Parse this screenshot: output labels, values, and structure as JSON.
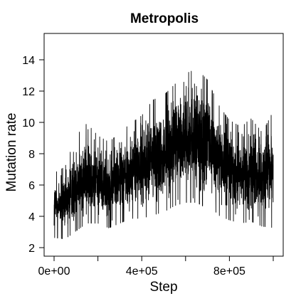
{
  "chart_data": {
    "type": "line",
    "title": "Metropolis",
    "xlabel": "Step",
    "ylabel": "Mutation rate",
    "xlim": [
      0,
      1000000
    ],
    "ylim": [
      1.8,
      15.0
    ],
    "x_ticks": [
      0,
      200000,
      400000,
      600000,
      800000,
      1000000
    ],
    "x_tick_labels": [
      "0e+00",
      "",
      "4e+05",
      "",
      "8e+05",
      ""
    ],
    "y_ticks": [
      2,
      4,
      6,
      8,
      10,
      12,
      14
    ],
    "y_tick_labels": [
      "2",
      "4",
      "6",
      "8",
      "10",
      "12",
      "14"
    ],
    "grid": false,
    "series_color": "#000000",
    "envelope": {
      "x": [
        0,
        50000,
        100000,
        150000,
        200000,
        250000,
        300000,
        350000,
        400000,
        450000,
        500000,
        550000,
        600000,
        650000,
        700000,
        750000,
        800000,
        850000,
        900000,
        950000,
        1000000
      ],
      "low": [
        2.6,
        2.5,
        3.0,
        3.5,
        3.5,
        3.2,
        3.5,
        3.8,
        3.8,
        4.0,
        4.2,
        4.6,
        4.8,
        4.8,
        4.4,
        4.0,
        3.7,
        3.5,
        3.6,
        3.3,
        3.2
      ],
      "high": [
        6.8,
        7.2,
        9.2,
        10.0,
        9.2,
        8.8,
        9.4,
        10.0,
        10.5,
        11.5,
        11.8,
        12.5,
        13.2,
        13.5,
        12.8,
        11.2,
        10.2,
        9.8,
        10.3,
        9.4,
        10.8
      ]
    }
  }
}
